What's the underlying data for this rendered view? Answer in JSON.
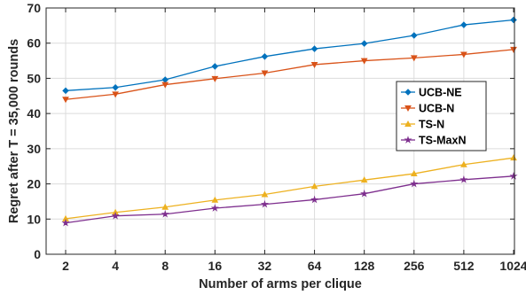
{
  "chart_data": {
    "type": "line",
    "title": "",
    "xlabel": "Number of arms per clique",
    "ylabel": "Regret after T = 35,000 rounds",
    "categories": [
      "2",
      "4",
      "8",
      "16",
      "32",
      "64",
      "128",
      "256",
      "512",
      "1024"
    ],
    "ylim": [
      0,
      70
    ],
    "yticks": [
      0,
      10,
      20,
      30,
      40,
      50,
      60,
      70
    ],
    "grid": true,
    "legend_position": "center-right",
    "series": [
      {
        "name": "UCB-NE",
        "color": "#0072BD",
        "marker": "diamond",
        "values": [
          46.5,
          47.4,
          49.6,
          53.4,
          56.2,
          58.4,
          59.9,
          62.2,
          65.2,
          66.6
        ]
      },
      {
        "name": "UCB-N",
        "color": "#D95319",
        "marker": "triangle-down",
        "values": [
          44.0,
          45.5,
          48.2,
          49.9,
          51.5,
          53.9,
          55.0,
          55.8,
          56.8,
          58.2
        ]
      },
      {
        "name": "TS-N",
        "color": "#EDB120",
        "marker": "triangle-up",
        "values": [
          10.1,
          11.9,
          13.4,
          15.4,
          17.0,
          19.3,
          21.1,
          22.9,
          25.5,
          27.4
        ]
      },
      {
        "name": "TS-MaxN",
        "color": "#7E2F8E",
        "marker": "star",
        "values": [
          8.9,
          10.9,
          11.4,
          13.1,
          14.2,
          15.5,
          17.2,
          20.0,
          21.2,
          22.2
        ]
      }
    ]
  }
}
